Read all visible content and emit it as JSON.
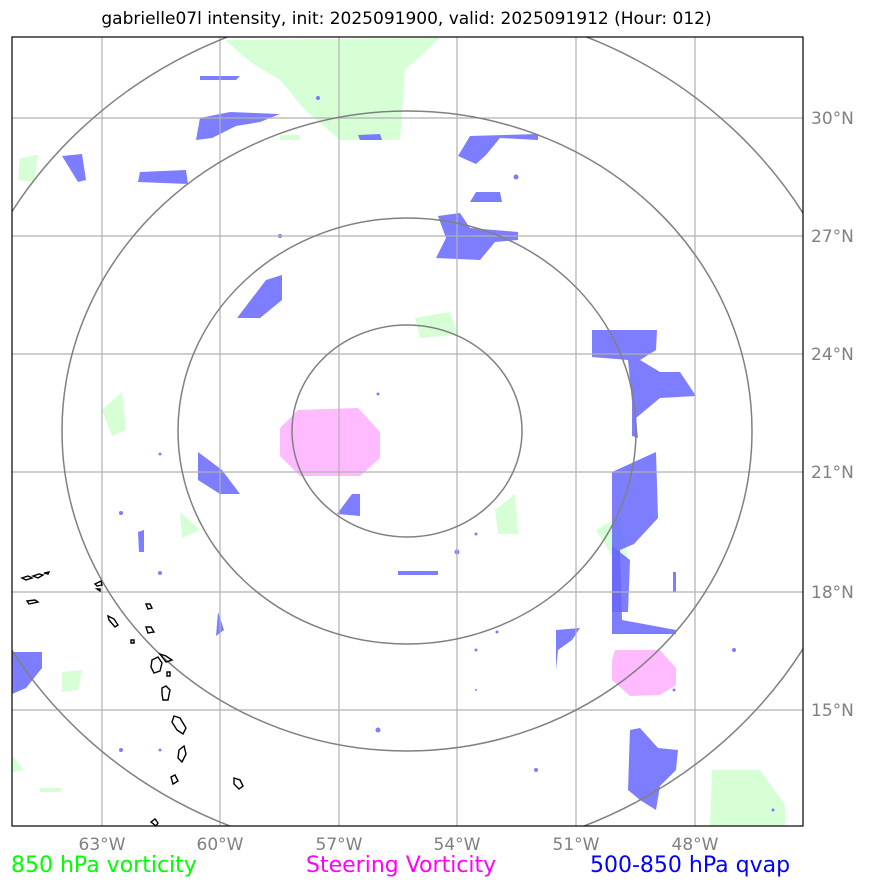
{
  "title": "gabrielle07l intensity, init: 2025091900, valid: 2025091912 (Hour: 012)",
  "legend": {
    "green": "850 hPa vorticity",
    "pink": "Steering Vorticity",
    "blue": "500-850 hPa qvap"
  },
  "axes": {
    "lon_labels": [
      "63°W",
      "60°W",
      "57°W",
      "54°W",
      "51°W",
      "48°W"
    ],
    "lat_labels": [
      "30°N",
      "27°N",
      "24°N",
      "21°N",
      "18°N",
      "15°N"
    ]
  },
  "colors": {
    "green": "#ccffcc",
    "pink": "#ffaaff",
    "blue": "#6666ff",
    "grid": "#b0b0b0",
    "rings": "#808080",
    "coast": "#000000"
  }
}
